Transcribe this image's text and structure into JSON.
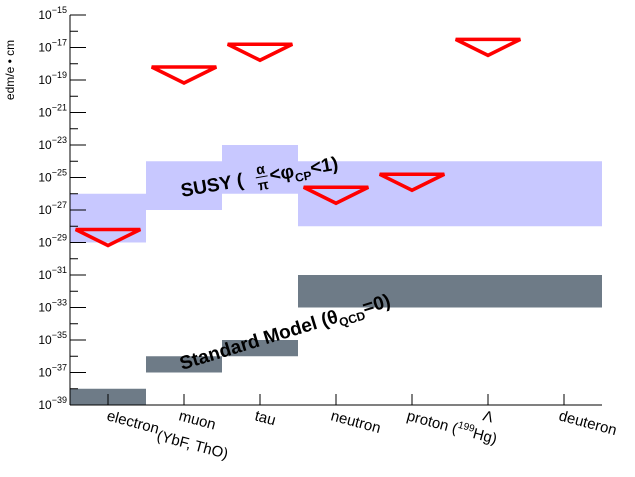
{
  "chart_data": {
    "type": "bar",
    "ylabel": "edm/e • cm",
    "yscale": "log",
    "ylim_exp": [
      -39,
      -15
    ],
    "categories": [
      {
        "key": "electron",
        "label": "electron",
        "sublabel": "(YbF, ThO)"
      },
      {
        "key": "muon",
        "label": "muon",
        "sublabel": ""
      },
      {
        "key": "tau",
        "label": "tau",
        "sublabel": ""
      },
      {
        "key": "neutron",
        "label": "neutron",
        "sublabel": ""
      },
      {
        "key": "proton",
        "label": "proton (",
        "sup": "199",
        "label_tail": "Hg)"
      },
      {
        "key": "lambda",
        "label": "Λ",
        "sublabel": ""
      },
      {
        "key": "deuteron",
        "label": "deuteron",
        "sublabel": ""
      }
    ],
    "susy_band": {
      "label": "SUSY (",
      "frac_num": "α",
      "frac_den": "π",
      "label_mid": "<φ",
      "label_sub": "CP",
      "label_end": "<1)",
      "color": "#c8c8ff",
      "segments": [
        {
          "x0": 0,
          "x1": 1,
          "low_exp": -29,
          "high_exp": -26
        },
        {
          "x0": 1,
          "x1": 2,
          "low_exp": -27,
          "high_exp": -24
        },
        {
          "x0": 2,
          "x1": 3,
          "low_exp": -26,
          "high_exp": -23
        },
        {
          "x0": 3,
          "x1": 7,
          "low_exp": -28,
          "high_exp": -24
        }
      ]
    },
    "sm_band": {
      "label": "Standard Model (",
      "theta": "θ",
      "theta_sub": "QCD",
      "label_end": "=0)",
      "color": "#6e7b87",
      "segments": [
        {
          "x0": 0,
          "x1": 1,
          "low_exp": -39,
          "high_exp": -38
        },
        {
          "x0": 1,
          "x1": 2,
          "low_exp": -37,
          "high_exp": -36
        },
        {
          "x0": 2,
          "x1": 3,
          "low_exp": -36,
          "high_exp": -35
        },
        {
          "x0": 3,
          "x1": 7,
          "low_exp": -33,
          "high_exp": -31
        }
      ]
    },
    "limits": [
      {
        "category": "electron",
        "value_exp": -28.2,
        "width_frac": 0.85
      },
      {
        "category": "muon",
        "value_exp": -18.2,
        "width_frac": 0.85
      },
      {
        "category": "tau",
        "value_exp": -16.8,
        "width_frac": 0.85
      },
      {
        "category": "neutron",
        "value_exp": -25.6,
        "width_frac": 0.85
      },
      {
        "category": "proton",
        "value_exp": -24.8,
        "width_frac": 0.85
      },
      {
        "category": "lambda",
        "value_exp": -16.5,
        "width_frac": 0.85
      }
    ],
    "limit_color": "#ff0000"
  }
}
